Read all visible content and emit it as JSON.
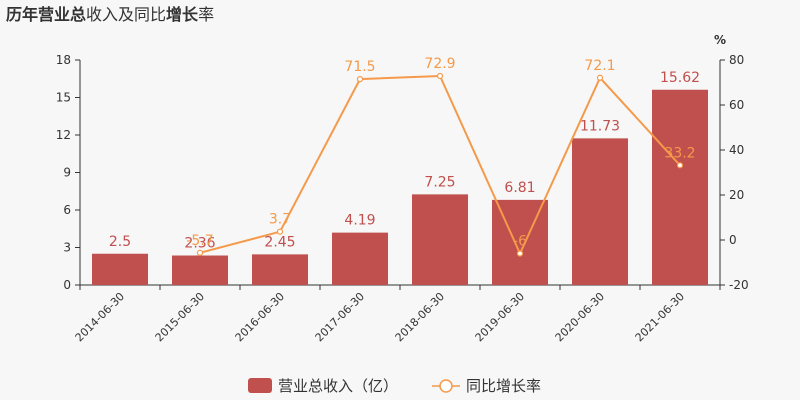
{
  "chart_data": {
    "type": "bar",
    "title_parts": [
      {
        "text": "历年",
        "bold": true
      },
      {
        "text": "营业总",
        "bold": true
      },
      {
        "text": "收入及同比",
        "bold": false
      },
      {
        "text": "增长",
        "bold": true
      },
      {
        "text": "率",
        "bold": false
      }
    ],
    "categories": [
      "2014-06-30",
      "2015-06-30",
      "2016-06-30",
      "2017-06-30",
      "2018-06-30",
      "2019-06-30",
      "2020-06-30",
      "2021-06-30"
    ],
    "series": [
      {
        "name": "营业总收入（亿）",
        "kind": "bar",
        "axis": "left",
        "color": "#c0504d",
        "values": [
          2.5,
          2.36,
          2.45,
          4.19,
          7.25,
          6.81,
          11.73,
          15.62
        ],
        "labels": [
          "2.5",
          "2.36",
          "2.45",
          "4.19",
          "7.25",
          "6.81",
          "11.73",
          "15.62"
        ]
      },
      {
        "name": "同比增长率",
        "kind": "line",
        "axis": "right",
        "color": "#f49a4a",
        "values": [
          null,
          -5.7,
          3.7,
          71.5,
          72.9,
          -6,
          72.1,
          33.2
        ],
        "labels": [
          "",
          "-5.7",
          "3.7",
          "71.5",
          "72.9",
          "-6",
          "72.1",
          "33.2"
        ]
      }
    ],
    "y_left": {
      "min": 0,
      "max": 18,
      "ticks": [
        "0",
        "3",
        "6",
        "9",
        "12",
        "15",
        "18"
      ]
    },
    "y_right": {
      "min": -20,
      "max": 80,
      "unit": "%",
      "ticks": [
        "-20",
        "0",
        "20",
        "40",
        "60",
        "80"
      ]
    },
    "legend_position": "bottom-center",
    "grid": false
  }
}
